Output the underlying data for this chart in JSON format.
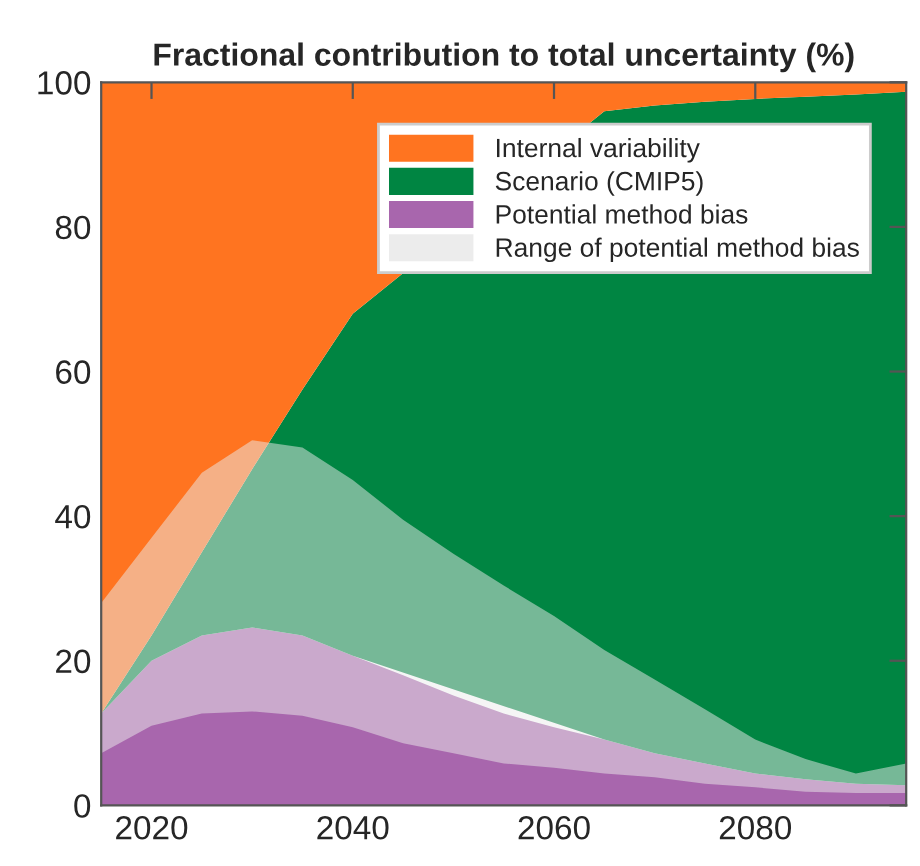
{
  "chart_data": {
    "type": "area",
    "stacked": true,
    "title": "Fractional contribution to total uncertainty (%)",
    "x": [
      2015,
      2020,
      2025,
      2030,
      2035,
      2040,
      2045,
      2050,
      2055,
      2060,
      2065,
      2070,
      2075,
      2080,
      2085,
      2090,
      2095
    ],
    "series": [
      {
        "name": "Potential method bias",
        "color": "#a866ad",
        "values": [
          12.7,
          20,
          23.5,
          24.6,
          23.5,
          20.7,
          18,
          15.2,
          12.7,
          10.8,
          9.1,
          7.2,
          5.8,
          4.4,
          3.6,
          3,
          2.8
        ]
      },
      {
        "name": "Scenario (CMIP5)",
        "color": "#008542",
        "values": [
          0,
          3.5,
          11.5,
          21.9,
          34,
          47.3,
          null,
          null,
          null,
          null,
          86.9,
          89.6,
          91.5,
          93.3,
          94.4,
          95.3,
          95.9
        ]
      },
      {
        "name": "Internal variability",
        "color": "#ff7420",
        "values": [
          87.3,
          76.5,
          65,
          53.5,
          42.5,
          32,
          null,
          null,
          null,
          null,
          4,
          3.2,
          2.7,
          2.3,
          2,
          1.7,
          1.3
        ]
      },
      {
        "name": "Range of potential method bias",
        "color": "#ececec",
        "values": [
          null,
          null,
          null,
          null,
          null,
          null,
          null,
          null,
          null,
          null,
          null,
          null,
          null,
          null,
          null,
          null,
          null
        ],
        "lower": [
          7.2,
          11,
          12.7,
          13,
          12.4,
          10.8,
          8.6,
          7.2,
          5.8,
          5.2,
          4.4,
          3.9,
          3,
          2.5,
          1.9,
          1.7,
          1.7
        ],
        "upper": [
          28,
          37,
          46,
          50.5,
          49.5,
          45,
          39.5,
          34.8,
          30.4,
          26.2,
          21.5,
          17.4,
          13.3,
          9.1,
          6.4,
          4.4,
          5.8
        ]
      }
    ],
    "xlim": [
      2015,
      2095
    ],
    "ylim": [
      0,
      100
    ],
    "xticks": [
      2020,
      2040,
      2060,
      2080
    ],
    "yticks": [
      0,
      20,
      40,
      60,
      80,
      100
    ],
    "legend": "top right",
    "grid": false
  }
}
